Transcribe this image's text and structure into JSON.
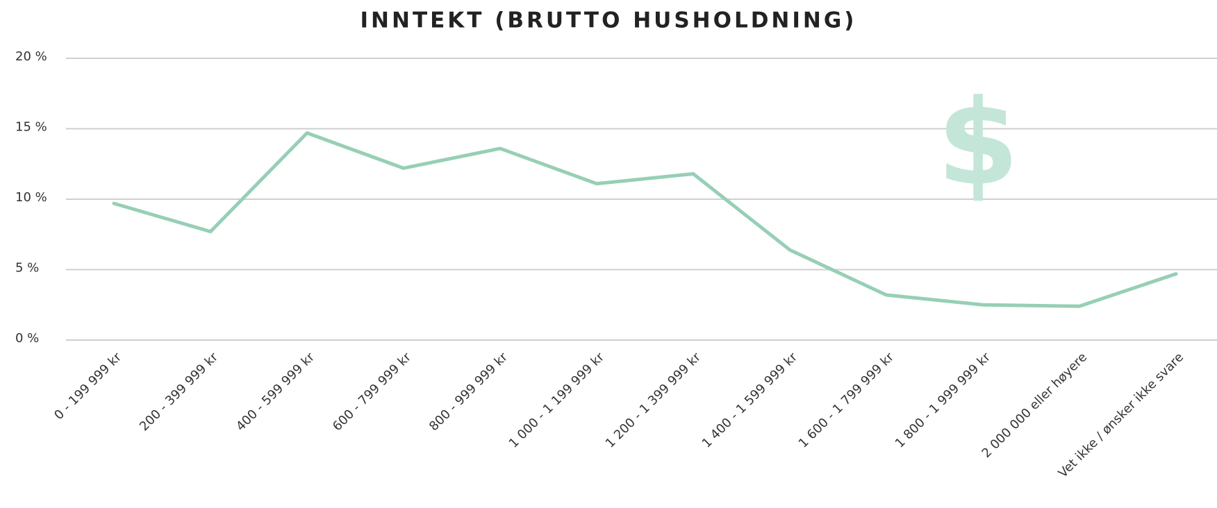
{
  "chart_data": {
    "type": "line",
    "title": "INNTEKT (BRUTTO HUSHOLDNING)",
    "annotation": "$",
    "categories": [
      "0 - 199 999 kr",
      "200 - 399 999 kr",
      "400 - 599 999 kr",
      "600 - 799 999 kr",
      "800 - 999 999 kr",
      "1 000 - 1 199 999 kr",
      "1 200 - 1 399 999 kr",
      "1 400 - 1 599 999 kr",
      "1 600 - 1 799 999 kr",
      "1 800 - 1 999 999 kr",
      "2 000 000 eller høyere",
      "Vet ikke / ønsker ikke svare"
    ],
    "values": [
      9.7,
      7.7,
      14.7,
      12.2,
      13.6,
      11.1,
      11.8,
      6.4,
      3.2,
      2.5,
      2.4,
      4.7
    ],
    "color": "#96cfb5",
    "ylim": [
      0,
      20
    ],
    "yticks": [
      {
        "value": 0,
        "label": "0 %"
      },
      {
        "value": 5,
        "label": "5 %"
      },
      {
        "value": 10,
        "label": "10 %"
      },
      {
        "value": 15,
        "label": "15 %"
      },
      {
        "value": 20,
        "label": "20 %"
      }
    ],
    "grid": true
  }
}
